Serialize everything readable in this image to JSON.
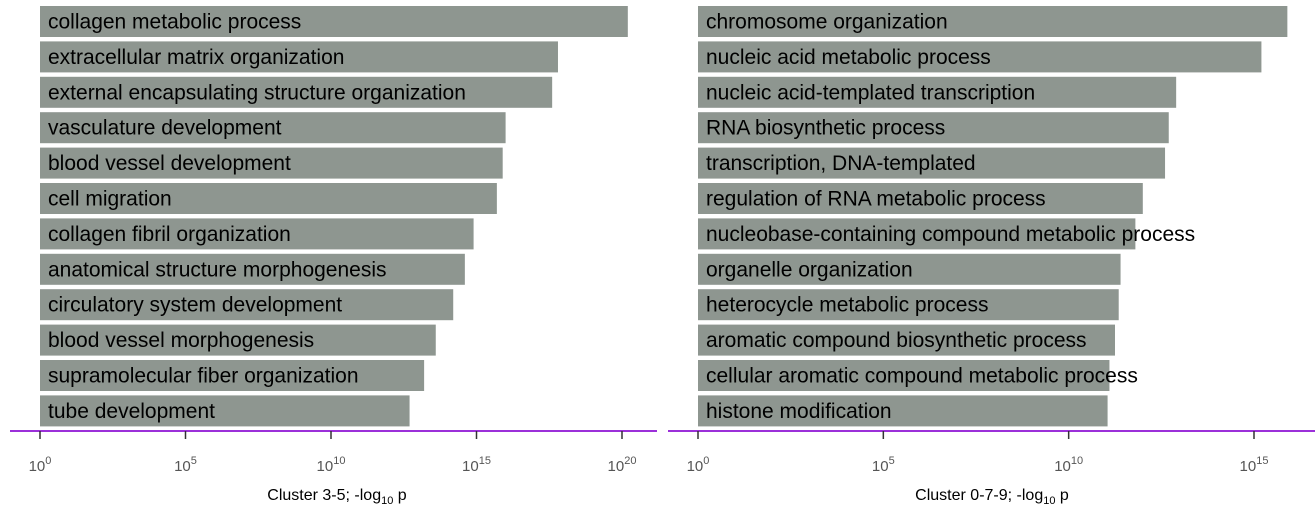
{
  "colors": {
    "bar": "#8e9690",
    "axis_line": "#9b30d9",
    "tick": "#333333",
    "tick_label": "#555555",
    "label": "#000000"
  },
  "chart_data": [
    {
      "type": "bar",
      "orientation": "horizontal",
      "xscale": "log10",
      "xlabel": {
        "prefix": "Cluster 3-5; -log",
        "sub": "10",
        "suffix": " p"
      },
      "xlim_exp": [
        0,
        22.5
      ],
      "ticks": [
        {
          "base": "10",
          "exp": "0",
          "value": 0
        },
        {
          "base": "10",
          "exp": "5",
          "value": 5
        },
        {
          "base": "10",
          "exp": "10",
          "value": 10
        },
        {
          "base": "10",
          "exp": "15",
          "value": 15
        },
        {
          "base": "10",
          "exp": "20",
          "value": 20
        }
      ],
      "categories": [
        "collagen metabolic process",
        "extracellular matrix organization",
        "external encapsulating structure organization",
        "vasculature development",
        "blood vessel development",
        "cell migration",
        "collagen fibril organization",
        "anatomical structure morphogenesis",
        "circulatory system development",
        "blood vessel morphogenesis",
        "supramolecular fiber organization",
        "tube development"
      ],
      "values_exp": [
        20.2,
        17.8,
        17.6,
        16.0,
        15.9,
        15.7,
        14.9,
        14.6,
        14.2,
        13.6,
        13.2,
        12.7
      ]
    },
    {
      "type": "bar",
      "orientation": "horizontal",
      "xscale": "log10",
      "xlabel": {
        "prefix": "Cluster 0-7-9; -log",
        "sub": "10",
        "suffix": " p"
      },
      "xlim_exp": [
        0,
        16.8
      ],
      "ticks": [
        {
          "base": "10",
          "exp": "0",
          "value": 0
        },
        {
          "base": "10",
          "exp": "5",
          "value": 5
        },
        {
          "base": "10",
          "exp": "10",
          "value": 10
        },
        {
          "base": "10",
          "exp": "15",
          "value": 15
        }
      ],
      "categories": [
        "chromosome organization",
        "nucleic acid metabolic process",
        "nucleic acid-templated transcription",
        "RNA biosynthetic process",
        "transcription, DNA-templated",
        "regulation of RNA metabolic process",
        "nucleobase-containing compound metabolic process",
        "organelle organization",
        "heterocycle metabolic process",
        "aromatic compound biosynthetic process",
        "cellular aromatic compound metabolic process",
        "histone modification"
      ],
      "values_exp": [
        15.9,
        15.2,
        12.9,
        12.7,
        12.6,
        12.0,
        11.8,
        11.4,
        11.35,
        11.25,
        11.1,
        11.05
      ]
    }
  ]
}
